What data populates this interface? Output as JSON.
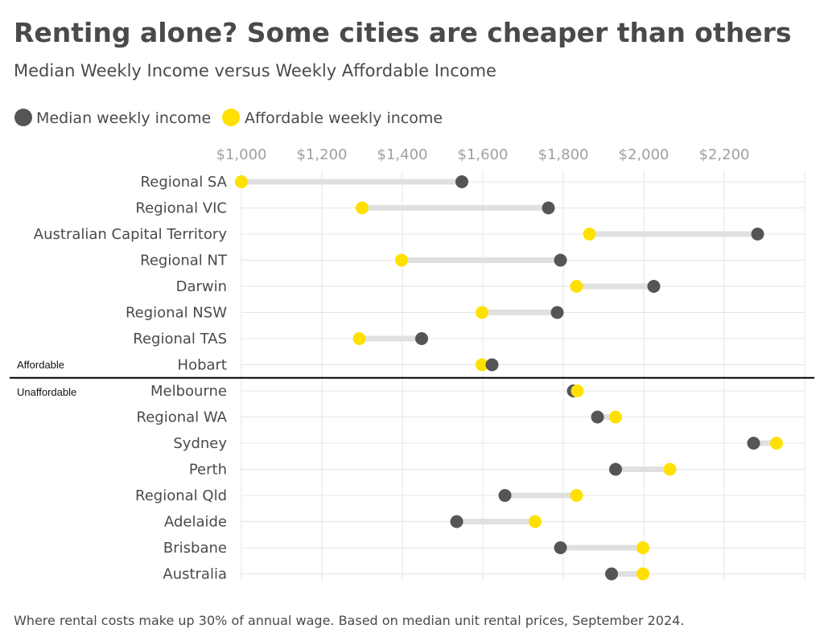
{
  "title": "Renting alone? Some cities are cheaper than others",
  "subtitle": "Median Weekly Income versus Weekly Affordable Income",
  "footnote": "Where rental costs make up 30% of annual wage. Based on median unit rental prices, September 2024.",
  "colors": {
    "median": "#555555",
    "affordable": "#ffe000",
    "connector": "#e0e0e0",
    "divider": "#000000"
  },
  "chart_data": {
    "type": "dumbbell",
    "xlim": [
      1000,
      2400
    ],
    "x_ticks": [
      1000,
      1200,
      1400,
      1600,
      1800,
      2000,
      2200
    ],
    "x_tick_labels": [
      "$1,000",
      "$1,200",
      "$1,400",
      "$1,600",
      "$1,800",
      "$2,000",
      "$2,200"
    ],
    "grid": true,
    "legend": {
      "position": "top-left",
      "entries": [
        {
          "key": "median",
          "label": "Median weekly income"
        },
        {
          "key": "affordable",
          "label": "Affordable weekly income"
        }
      ]
    },
    "section_labels": {
      "affordable": "Affordable",
      "unaffordable": "Unaffordable"
    },
    "divider_after_index": 7,
    "categories": [
      "Regional SA",
      "Regional VIC",
      "Australian Capital Territory",
      "Regional NT",
      "Darwin",
      "Regional NSW",
      "Regional TAS",
      "Hobart",
      "Melbourne",
      "Regional WA",
      "Sydney",
      "Perth",
      "Regional Qld",
      "Adelaide",
      "Brisbane",
      "Australia"
    ],
    "series": [
      {
        "key": "median",
        "name": "Median weekly income",
        "values": [
          1548,
          1763,
          2283,
          1793,
          2025,
          1785,
          1448,
          1623,
          1825,
          1885,
          2273,
          1930,
          1655,
          1535,
          1793,
          1920
        ]
      },
      {
        "key": "affordable",
        "name": "Affordable weekly income",
        "values": [
          1000,
          1300,
          1865,
          1398,
          1833,
          1598,
          1293,
          1598,
          1835,
          1930,
          2330,
          2065,
          1833,
          1730,
          1998,
          1998
        ]
      }
    ]
  }
}
